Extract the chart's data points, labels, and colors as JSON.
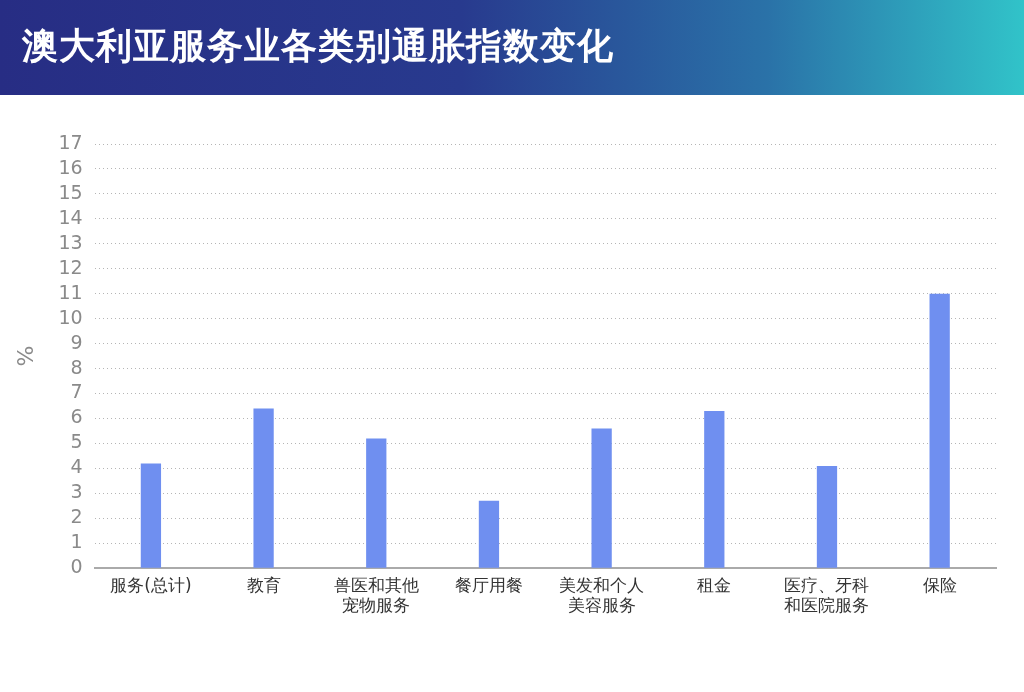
{
  "chart_data": {
    "type": "bar",
    "title": "澳大利亚服务业各类别通胀指数变化",
    "ylabel": "%",
    "categories": [
      "服务(总计)",
      "教育",
      "兽医和其他宠物服务",
      "餐厅用餐",
      "美发和个人美容服务",
      "租金",
      "医疗、牙科和医院服务",
      "保险"
    ],
    "values": [
      4.2,
      6.4,
      5.2,
      2.7,
      5.6,
      6.3,
      4.1,
      11.0
    ],
    "color": "#6f8ff0",
    "ylim": [
      0,
      17
    ],
    "yticks": [
      0,
      1,
      2,
      3,
      4,
      5,
      6,
      7,
      8,
      9,
      10,
      11,
      12,
      13,
      14,
      15,
      16,
      17
    ],
    "grid": "y"
  }
}
